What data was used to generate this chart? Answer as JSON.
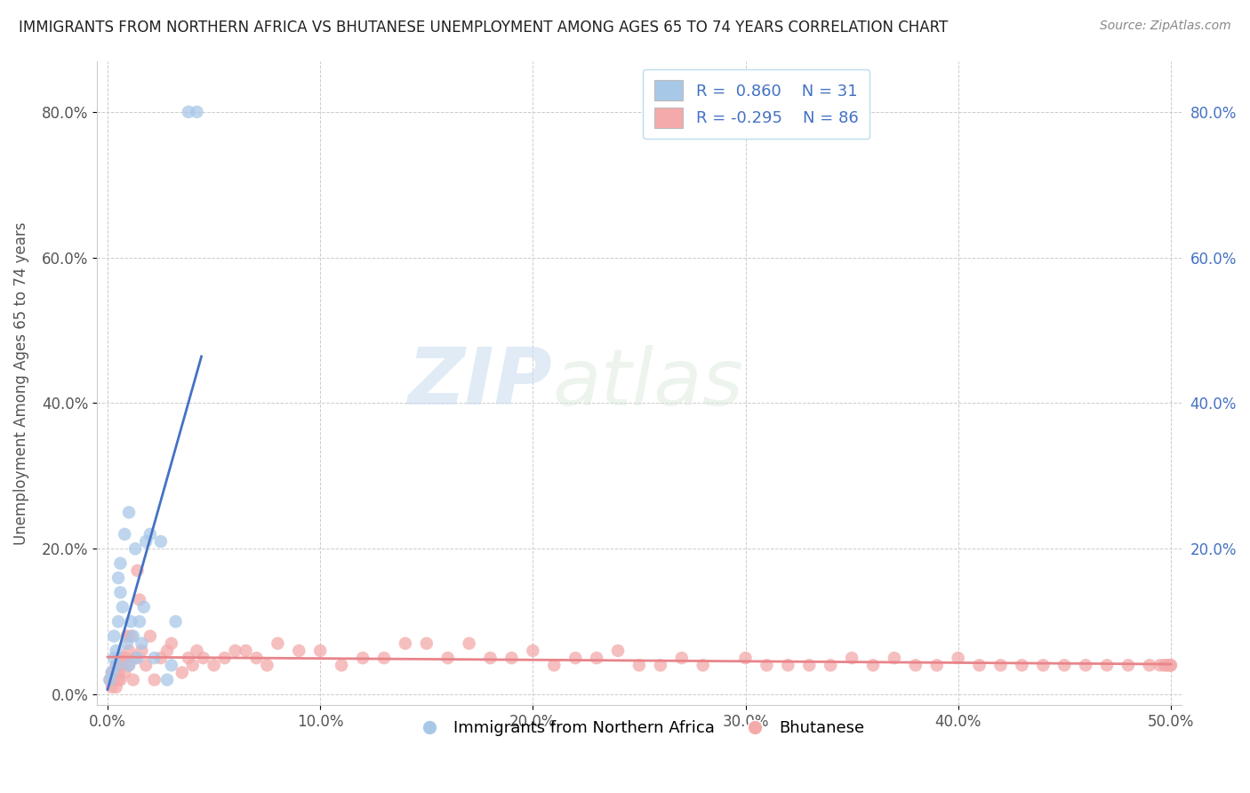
{
  "title": "IMMIGRANTS FROM NORTHERN AFRICA VS BHUTANESE UNEMPLOYMENT AMONG AGES 65 TO 74 YEARS CORRELATION CHART",
  "source": "Source: ZipAtlas.com",
  "ylabel": "Unemployment Among Ages 65 to 74 years",
  "xlim": [
    0.0,
    0.5
  ],
  "ylim": [
    0.0,
    0.85
  ],
  "legend_r1": "R =  0.860",
  "legend_n1": "N = 31",
  "legend_r2": "R = -0.295",
  "legend_n2": "N = 86",
  "color_blue": "#A8C8E8",
  "color_pink": "#F4AAAA",
  "line_blue": "#4472C4",
  "line_pink": "#E8848A",
  "watermark_zip": "ZIP",
  "watermark_atlas": "atlas",
  "blue_scatter_x": [
    0.001,
    0.002,
    0.003,
    0.003,
    0.004,
    0.004,
    0.005,
    0.005,
    0.006,
    0.006,
    0.007,
    0.008,
    0.009,
    0.01,
    0.01,
    0.011,
    0.012,
    0.013,
    0.014,
    0.015,
    0.016,
    0.017,
    0.018,
    0.02,
    0.022,
    0.025,
    0.028,
    0.03,
    0.032,
    0.038,
    0.042
  ],
  "blue_scatter_y": [
    0.02,
    0.03,
    0.05,
    0.08,
    0.04,
    0.06,
    0.1,
    0.16,
    0.14,
    0.18,
    0.12,
    0.22,
    0.07,
    0.25,
    0.04,
    0.1,
    0.08,
    0.2,
    0.05,
    0.1,
    0.07,
    0.12,
    0.21,
    0.22,
    0.05,
    0.21,
    0.02,
    0.04,
    0.1,
    0.8,
    0.8
  ],
  "pink_scatter_x": [
    0.001,
    0.002,
    0.002,
    0.003,
    0.004,
    0.004,
    0.005,
    0.005,
    0.006,
    0.006,
    0.007,
    0.008,
    0.008,
    0.009,
    0.01,
    0.01,
    0.011,
    0.012,
    0.013,
    0.014,
    0.015,
    0.016,
    0.018,
    0.02,
    0.022,
    0.025,
    0.028,
    0.03,
    0.035,
    0.038,
    0.04,
    0.042,
    0.045,
    0.05,
    0.055,
    0.06,
    0.065,
    0.07,
    0.075,
    0.08,
    0.09,
    0.1,
    0.11,
    0.12,
    0.13,
    0.14,
    0.15,
    0.16,
    0.17,
    0.18,
    0.19,
    0.2,
    0.21,
    0.22,
    0.23,
    0.24,
    0.25,
    0.26,
    0.27,
    0.28,
    0.3,
    0.31,
    0.32,
    0.33,
    0.34,
    0.35,
    0.36,
    0.37,
    0.38,
    0.39,
    0.4,
    0.41,
    0.42,
    0.43,
    0.44,
    0.45,
    0.46,
    0.47,
    0.48,
    0.49,
    0.495,
    0.497,
    0.498,
    0.499,
    0.5,
    0.5
  ],
  "pink_scatter_y": [
    0.02,
    0.01,
    0.03,
    0.02,
    0.01,
    0.04,
    0.02,
    0.03,
    0.05,
    0.02,
    0.04,
    0.03,
    0.05,
    0.08,
    0.06,
    0.04,
    0.08,
    0.02,
    0.05,
    0.17,
    0.13,
    0.06,
    0.04,
    0.08,
    0.02,
    0.05,
    0.06,
    0.07,
    0.03,
    0.05,
    0.04,
    0.06,
    0.05,
    0.04,
    0.05,
    0.06,
    0.06,
    0.05,
    0.04,
    0.07,
    0.06,
    0.06,
    0.04,
    0.05,
    0.05,
    0.07,
    0.07,
    0.05,
    0.07,
    0.05,
    0.05,
    0.06,
    0.04,
    0.05,
    0.05,
    0.06,
    0.04,
    0.04,
    0.05,
    0.04,
    0.05,
    0.04,
    0.04,
    0.04,
    0.04,
    0.05,
    0.04,
    0.05,
    0.04,
    0.04,
    0.05,
    0.04,
    0.04,
    0.04,
    0.04,
    0.04,
    0.04,
    0.04,
    0.04,
    0.04,
    0.04,
    0.04,
    0.04,
    0.04,
    0.04,
    0.04
  ],
  "xtick_vals": [
    0.0,
    0.1,
    0.2,
    0.3,
    0.4,
    0.5
  ],
  "ytick_vals": [
    0.0,
    0.2,
    0.4,
    0.6,
    0.8
  ],
  "right_ytick_labels": [
    "",
    "20.0%",
    "40.0%",
    "60.0%",
    "80.0%"
  ],
  "title_fontsize": 12,
  "tick_fontsize": 12,
  "ylabel_fontsize": 12,
  "legend_fontsize": 13
}
